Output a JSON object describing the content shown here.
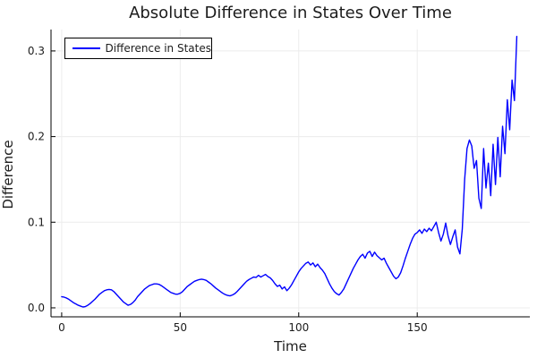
{
  "title": "Absolute Difference in States Over Time",
  "legend": {
    "label": "Difference in States"
  },
  "colors": {
    "line": "#0000ff",
    "grid": "#ececec",
    "axis": "#000000",
    "tick_text": "#1c1c1c",
    "background": "#ffffff"
  },
  "chart_data": {
    "type": "line",
    "title": "Absolute Difference in States Over Time",
    "xlabel": "Time",
    "ylabel": "Difference",
    "legend_position": "top-left",
    "grid": true,
    "xlim": [
      -4.5,
      197.5
    ],
    "ylim": [
      -0.0105,
      0.325
    ],
    "x_ticks": [
      0,
      50,
      100,
      150
    ],
    "x_tick_labels": [
      "0",
      "50",
      "100",
      "150"
    ],
    "y_ticks": [
      0,
      0.1,
      0.2,
      0.3
    ],
    "y_tick_labels": [
      "0.0",
      "0.1",
      "0.2",
      "0.3"
    ],
    "series": [
      {
        "name": "Difference in States",
        "color": "#0000ff",
        "x_start": 0,
        "x_step": 1,
        "values": [
          0.013,
          0.0125,
          0.0115,
          0.01,
          0.008,
          0.006,
          0.0045,
          0.003,
          0.002,
          0.001,
          0.0015,
          0.003,
          0.005,
          0.0075,
          0.01,
          0.013,
          0.016,
          0.018,
          0.02,
          0.021,
          0.0215,
          0.021,
          0.019,
          0.016,
          0.013,
          0.01,
          0.007,
          0.005,
          0.003,
          0.004,
          0.006,
          0.009,
          0.013,
          0.016,
          0.019,
          0.022,
          0.024,
          0.026,
          0.027,
          0.028,
          0.028,
          0.0275,
          0.026,
          0.024,
          0.022,
          0.02,
          0.018,
          0.017,
          0.016,
          0.016,
          0.017,
          0.019,
          0.022,
          0.025,
          0.027,
          0.029,
          0.031,
          0.032,
          0.033,
          0.0335,
          0.033,
          0.032,
          0.03,
          0.028,
          0.0255,
          0.023,
          0.021,
          0.019,
          0.017,
          0.0155,
          0.0145,
          0.014,
          0.015,
          0.0165,
          0.019,
          0.022,
          0.025,
          0.028,
          0.031,
          0.033,
          0.0345,
          0.036,
          0.0355,
          0.038,
          0.036,
          0.0375,
          0.039,
          0.0365,
          0.035,
          0.032,
          0.028,
          0.025,
          0.0265,
          0.022,
          0.0245,
          0.02,
          0.023,
          0.027,
          0.032,
          0.037,
          0.042,
          0.046,
          0.049,
          0.052,
          0.0535,
          0.05,
          0.0525,
          0.048,
          0.051,
          0.047,
          0.044,
          0.04,
          0.034,
          0.028,
          0.023,
          0.019,
          0.0165,
          0.015,
          0.018,
          0.022,
          0.028,
          0.034,
          0.04,
          0.046,
          0.051,
          0.056,
          0.06,
          0.0625,
          0.058,
          0.064,
          0.066,
          0.06,
          0.065,
          0.061,
          0.0585,
          0.056,
          0.058,
          0.052,
          0.047,
          0.042,
          0.037,
          0.034,
          0.036,
          0.041,
          0.049,
          0.058,
          0.066,
          0.074,
          0.081,
          0.086,
          0.088,
          0.091,
          0.087,
          0.092,
          0.089,
          0.093,
          0.09,
          0.095,
          0.1,
          0.088,
          0.078,
          0.086,
          0.099,
          0.084,
          0.074,
          0.083,
          0.091,
          0.071,
          0.063,
          0.092,
          0.15,
          0.186,
          0.196,
          0.189,
          0.163,
          0.172,
          0.128,
          0.116,
          0.186,
          0.14,
          0.169,
          0.131,
          0.191,
          0.144,
          0.199,
          0.153,
          0.212,
          0.18,
          0.243,
          0.208,
          0.266,
          0.242,
          0.317
        ]
      }
    ]
  }
}
